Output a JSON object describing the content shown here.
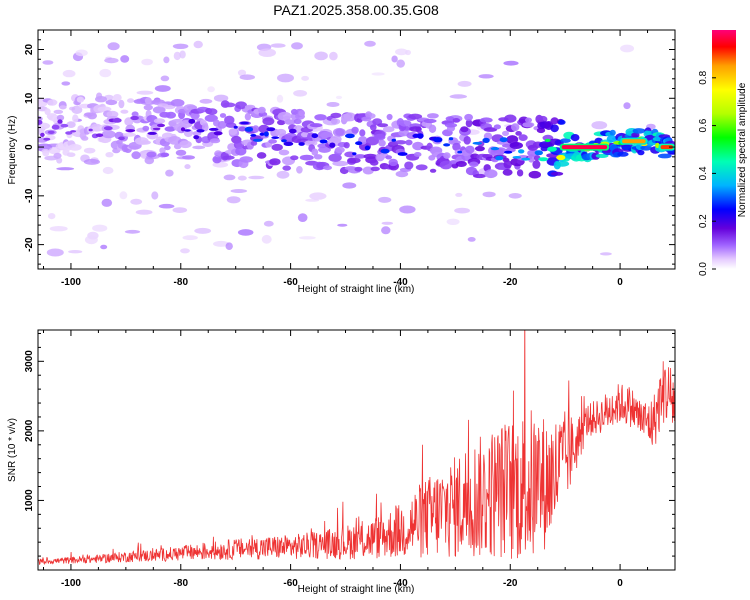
{
  "figure_title": "PAZ1.2025.358.00.35.G08",
  "chart_data": [
    {
      "type": "heatmap",
      "title": "PAZ1.2025.358.00.35.G08",
      "xlabel": "Height of straight line (km)",
      "ylabel": "Frequency (Hz)",
      "xlim": [
        -106,
        10
      ],
      "ylim": [
        -25,
        24
      ],
      "xticks": [
        -100,
        -80,
        -60,
        -40,
        -20,
        0
      ],
      "yticks": [
        -20,
        -10,
        0,
        10,
        20
      ],
      "colorbar": {
        "label": "Normalized spectral amplitude",
        "range": [
          0,
          1
        ],
        "ticks": [
          0.0,
          0.2,
          0.4,
          0.6,
          0.8
        ],
        "colormap": [
          "#ffffff",
          "#e6ccff",
          "#a064ff",
          "#6400dc",
          "#0000ff",
          "#00b4ff",
          "#00ffb4",
          "#00ff00",
          "#b4ff00",
          "#ffff00",
          "#ffa000",
          "#ff0000",
          "#ff0078"
        ]
      },
      "ridge": {
        "description": "Dominant Doppler frequency band",
        "x": [
          -105,
          -95,
          -85,
          -75,
          -65,
          -55,
          -45,
          -35,
          -25,
          -15,
          -10,
          -5,
          0,
          5,
          10
        ],
        "frequency_hz": [
          4,
          4.5,
          4,
          3.5,
          2,
          1,
          1,
          0.5,
          0,
          0,
          0,
          0,
          1,
          1,
          0
        ],
        "peak_amplitude": [
          0.15,
          0.15,
          0.2,
          0.25,
          0.3,
          0.25,
          0.3,
          0.3,
          0.35,
          0.35,
          0.9,
          0.95,
          0.7,
          0.9,
          0.85
        ]
      }
    },
    {
      "type": "line",
      "xlabel": "Height of straight line (km)",
      "ylabel": "SNR (10 * v/v)",
      "xlim": [
        -106,
        10
      ],
      "ylim": [
        0,
        3450
      ],
      "xticks": [
        -100,
        -80,
        -60,
        -40,
        -20,
        0
      ],
      "yticks": [
        1000,
        2000,
        3000
      ],
      "line_color": "#ee3333",
      "series": [
        {
          "name": "SNR",
          "x": [
            -106,
            -100,
            -95,
            -90,
            -85,
            -80,
            -75,
            -70,
            -65,
            -60,
            -55,
            -50,
            -45,
            -40,
            -38,
            -35,
            -32,
            -30,
            -28,
            -25,
            -22,
            -20,
            -18,
            -16,
            -14,
            -12,
            -10,
            -8,
            -6,
            -4,
            -2,
            0,
            2,
            4,
            6,
            8,
            10
          ],
          "values": [
            120,
            140,
            160,
            190,
            210,
            240,
            270,
            300,
            320,
            330,
            360,
            400,
            450,
            560,
            650,
            750,
            850,
            900,
            1000,
            1050,
            1150,
            1150,
            1200,
            1200,
            1250,
            1350,
            1600,
            1800,
            2150,
            2200,
            2300,
            2400,
            2350,
            2150,
            2100,
            2600,
            2400
          ],
          "amplitude": [
            40,
            50,
            60,
            80,
            90,
            110,
            130,
            150,
            170,
            180,
            200,
            250,
            300,
            400,
            500,
            600,
            700,
            750,
            850,
            900,
            1000,
            1050,
            1100,
            1150,
            1000,
            900,
            700,
            400,
            250,
            250,
            300,
            300,
            300,
            300,
            400,
            500,
            500
          ]
        }
      ]
    }
  ]
}
